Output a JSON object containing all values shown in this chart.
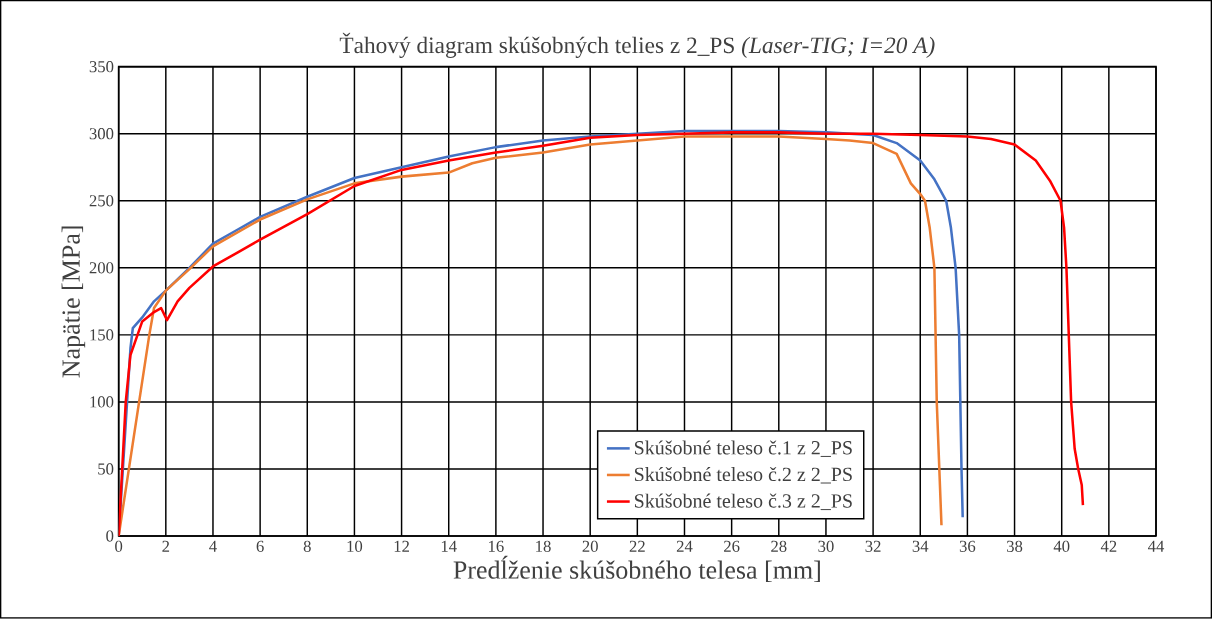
{
  "chart_data": {
    "type": "line",
    "title": "Ťahový diagram skúšobných telies z 2_PS *(Laser-TIG; I=20 A)*",
    "xlabel": "Predĺženie skúšobného telesa [mm]",
    "ylabel": "Napätie [MPa]",
    "xlim": [
      0,
      44
    ],
    "ylim": [
      0,
      350
    ],
    "xticks": [
      0,
      2,
      4,
      6,
      8,
      10,
      12,
      14,
      16,
      18,
      20,
      22,
      24,
      26,
      28,
      30,
      32,
      34,
      36,
      38,
      40,
      42,
      44
    ],
    "yticks": [
      0,
      50,
      100,
      150,
      200,
      250,
      300,
      350
    ],
    "grid": true,
    "legend": "bottom",
    "marker": "none",
    "line_style": "solid",
    "series": [
      {
        "name": "Skúšobné teleso č.1 z 2_PS",
        "color": "#4472c4",
        "x": [
          0,
          0.5,
          0.6,
          1,
          1.5,
          2,
          3,
          4,
          5,
          6,
          8,
          10,
          12,
          14,
          16,
          18,
          20,
          22,
          24,
          26,
          28,
          30,
          32,
          33,
          34,
          34.6,
          35.1,
          35.3,
          35.5,
          35.65,
          35.7,
          35.75,
          35.8
        ],
        "values": [
          0,
          140,
          155,
          163,
          175,
          183,
          200,
          218,
          228,
          238,
          253,
          267,
          275,
          283,
          290,
          295,
          298,
          300,
          302,
          302,
          302,
          301,
          299,
          293,
          280,
          266,
          250,
          230,
          200,
          150,
          100,
          50,
          14
        ]
      },
      {
        "name": "Skúšobné teleso č.2 z 2_PS",
        "color": "#ed7d31",
        "x": [
          0,
          1.3,
          1.5,
          2,
          3,
          4,
          6,
          8,
          10,
          12,
          14,
          15,
          16,
          18,
          20,
          22,
          24,
          26,
          28,
          30,
          31,
          32,
          33,
          33.6,
          34,
          34.2,
          34.4,
          34.6,
          34.7,
          34.9
        ],
        "values": [
          0,
          150,
          170,
          183,
          199,
          216,
          236,
          251,
          263,
          268,
          271,
          278,
          282,
          286,
          292,
          295,
          298,
          298,
          298,
          296,
          295,
          293,
          285,
          263,
          255,
          250,
          230,
          200,
          100,
          8
        ]
      },
      {
        "name": "Skúšobné teleso č.3 z 2_PS",
        "color": "#ff0000",
        "x": [
          0,
          0.3,
          0.5,
          0.8,
          1,
          1.5,
          1.8,
          2.05,
          2.5,
          3,
          4,
          5,
          6,
          8,
          10,
          12,
          14,
          16,
          18,
          20,
          22,
          24,
          26,
          28,
          30,
          32,
          34,
          36,
          37,
          38,
          38.9,
          39.5,
          39.95,
          40.1,
          40.2,
          40.4,
          40.55,
          40.7,
          40.85,
          40.9
        ],
        "values": [
          0,
          100,
          135,
          150,
          160,
          167,
          170,
          161,
          175,
          185,
          201,
          211,
          221,
          240,
          261,
          273,
          280,
          286,
          291,
          297,
          299,
          300,
          301,
          301,
          300,
          300,
          299,
          298,
          296,
          292,
          280,
          265,
          250,
          230,
          200,
          100,
          65,
          50,
          38,
          23
        ]
      }
    ]
  }
}
